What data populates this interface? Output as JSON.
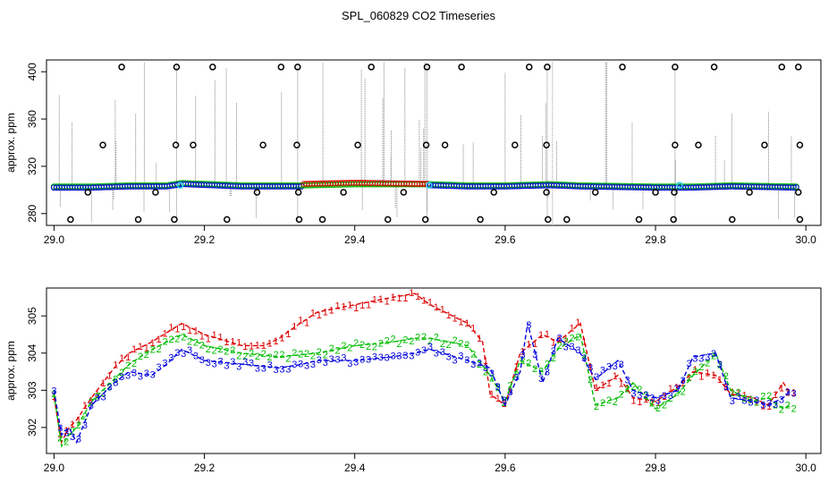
{
  "title": "SPL_060829  CO2 Timeseries",
  "colors": {
    "s1": "#dd0000",
    "s2": "#00bb00",
    "s3": "#0000dd",
    "cyan": "#33ccff",
    "outlier": "#000000",
    "spike": "#888888"
  },
  "chart_data": [
    {
      "type": "scatter",
      "panel": "top",
      "title": "",
      "xlabel": "",
      "ylabel": "approx. ppm",
      "xlim": [
        28.99,
        30.02
      ],
      "ylim": [
        270,
        410
      ],
      "xticks": [
        29.0,
        29.2,
        29.4,
        29.6,
        29.8,
        30.0
      ],
      "xtick_labels": [
        "29.0",
        "29.2",
        "29.4",
        "29.6",
        "29.8",
        "30.0"
      ],
      "yticks": [
        280,
        320,
        360,
        400
      ],
      "ytick_labels": [
        "280",
        "320",
        "360",
        "400"
      ],
      "baseline_series": [
        {
          "name": "blue",
          "color": "#0000dd",
          "x": [
            29.0,
            29.05,
            29.1,
            29.15,
            29.17,
            29.25,
            29.33,
            29.4,
            29.5,
            29.55,
            29.6,
            29.66,
            29.7,
            29.8,
            29.85,
            29.9,
            29.99
          ],
          "y": [
            302,
            302,
            303,
            303,
            305,
            303,
            303,
            304,
            304,
            303,
            303,
            304,
            303,
            302,
            302,
            303,
            302
          ]
        },
        {
          "name": "red",
          "color": "#dd0000",
          "x": [
            29.33,
            29.4,
            29.5
          ],
          "y": [
            305,
            306,
            305
          ]
        }
      ],
      "outliers_high": [
        29.09,
        29.163,
        29.211,
        29.302,
        29.324,
        29.422,
        29.496,
        29.542,
        29.632,
        29.656,
        29.756,
        29.826,
        29.878,
        29.968,
        29.99
      ],
      "outliers_mid": [
        29.065,
        29.162,
        29.185,
        29.278,
        29.323,
        29.404,
        29.495,
        29.52,
        29.613,
        29.655,
        29.826,
        29.857,
        29.945,
        29.992
      ],
      "outliers_low": [
        29.022,
        29.112,
        29.16,
        29.23,
        29.326,
        29.357,
        29.444,
        29.494,
        29.567,
        29.657,
        29.682,
        29.778,
        29.824,
        29.902,
        29.992
      ],
      "outliers_280": [
        29.045,
        29.135,
        29.27,
        29.325,
        29.385,
        29.465,
        29.585,
        29.655,
        29.72,
        29.8,
        29.825,
        29.925,
        29.99
      ],
      "cyan_points": [
        29.168,
        29.499,
        29.832
      ]
    },
    {
      "type": "line",
      "panel": "bottom",
      "title": "",
      "xlabel": "",
      "ylabel": "approx. ppm",
      "xlim": [
        28.99,
        30.02
      ],
      "ylim": [
        301.3,
        305.75
      ],
      "xticks": [
        29.0,
        29.2,
        29.4,
        29.6,
        29.8,
        30.0
      ],
      "xtick_labels": [
        "29.0",
        "29.2",
        "29.4",
        "29.6",
        "29.8",
        "30.0"
      ],
      "yticks": [
        302,
        303,
        304,
        305
      ],
      "ytick_labels": [
        "302",
        "303",
        "304",
        "305"
      ],
      "series": [
        {
          "name": "1",
          "color": "#dd0000",
          "x": [
            29.0,
            29.01,
            29.02,
            29.03,
            29.05,
            29.08,
            29.1,
            29.13,
            29.17,
            29.2,
            29.25,
            29.28,
            29.3,
            29.32,
            29.35,
            29.4,
            29.45,
            29.48,
            29.5,
            29.55,
            29.57,
            29.58,
            29.6,
            29.62,
            29.65,
            29.67,
            29.7,
            29.72,
            29.75,
            29.77,
            29.8,
            29.83,
            29.85,
            29.88,
            29.9,
            29.93,
            29.95,
            29.97,
            29.98
          ],
          "y": [
            302.8,
            301.6,
            302.0,
            302.2,
            302.8,
            303.6,
            304.0,
            304.3,
            304.8,
            304.5,
            304.2,
            304.2,
            304.4,
            304.7,
            305.1,
            305.3,
            305.5,
            305.6,
            305.3,
            304.8,
            304.3,
            302.9,
            302.6,
            304.0,
            304.5,
            304.3,
            304.8,
            303.0,
            303.4,
            302.8,
            302.7,
            303.1,
            303.5,
            303.4,
            302.9,
            302.8,
            302.6,
            303.2,
            302.9
          ]
        },
        {
          "name": "2",
          "color": "#00bb00",
          "x": [
            29.0,
            29.01,
            29.02,
            29.03,
            29.05,
            29.08,
            29.1,
            29.13,
            29.17,
            29.2,
            29.25,
            29.3,
            29.35,
            29.4,
            29.45,
            29.48,
            29.5,
            29.55,
            29.58,
            29.6,
            29.62,
            29.65,
            29.67,
            29.7,
            29.72,
            29.75,
            29.77,
            29.8,
            29.83,
            29.85,
            29.88,
            29.9,
            29.93,
            29.95,
            29.97,
            29.98
          ],
          "y": [
            302.9,
            301.5,
            301.8,
            302.0,
            302.7,
            303.3,
            303.7,
            304.1,
            304.5,
            304.2,
            304.0,
            303.9,
            304.0,
            304.2,
            304.3,
            304.4,
            304.4,
            304.2,
            303.4,
            302.7,
            303.8,
            303.5,
            304.1,
            304.5,
            302.6,
            302.8,
            303.2,
            302.5,
            302.9,
            303.4,
            304.0,
            303.0,
            302.7,
            302.8,
            302.5,
            302.6
          ]
        },
        {
          "name": "3",
          "color": "#0000dd",
          "x": [
            29.0,
            29.01,
            29.02,
            29.03,
            29.05,
            29.08,
            29.1,
            29.13,
            29.15,
            29.17,
            29.2,
            29.25,
            29.3,
            29.33,
            29.35,
            29.4,
            29.45,
            29.48,
            29.5,
            29.55,
            29.58,
            29.6,
            29.62,
            29.63,
            29.65,
            29.67,
            29.7,
            29.72,
            29.75,
            29.77,
            29.8,
            29.83,
            29.85,
            29.88,
            29.9,
            29.93,
            29.95,
            29.97,
            29.98
          ],
          "y": [
            303.0,
            301.8,
            302.0,
            301.6,
            302.6,
            303.2,
            303.5,
            303.4,
            303.7,
            304.1,
            303.8,
            303.7,
            303.6,
            303.7,
            303.8,
            303.8,
            303.9,
            304.0,
            304.1,
            303.8,
            303.6,
            302.6,
            303.5,
            304.8,
            303.2,
            304.4,
            304.0,
            303.3,
            303.8,
            303.0,
            302.8,
            303.0,
            303.9,
            304.0,
            302.8,
            302.7,
            302.6,
            302.8,
            303.0
          ]
        }
      ]
    }
  ]
}
